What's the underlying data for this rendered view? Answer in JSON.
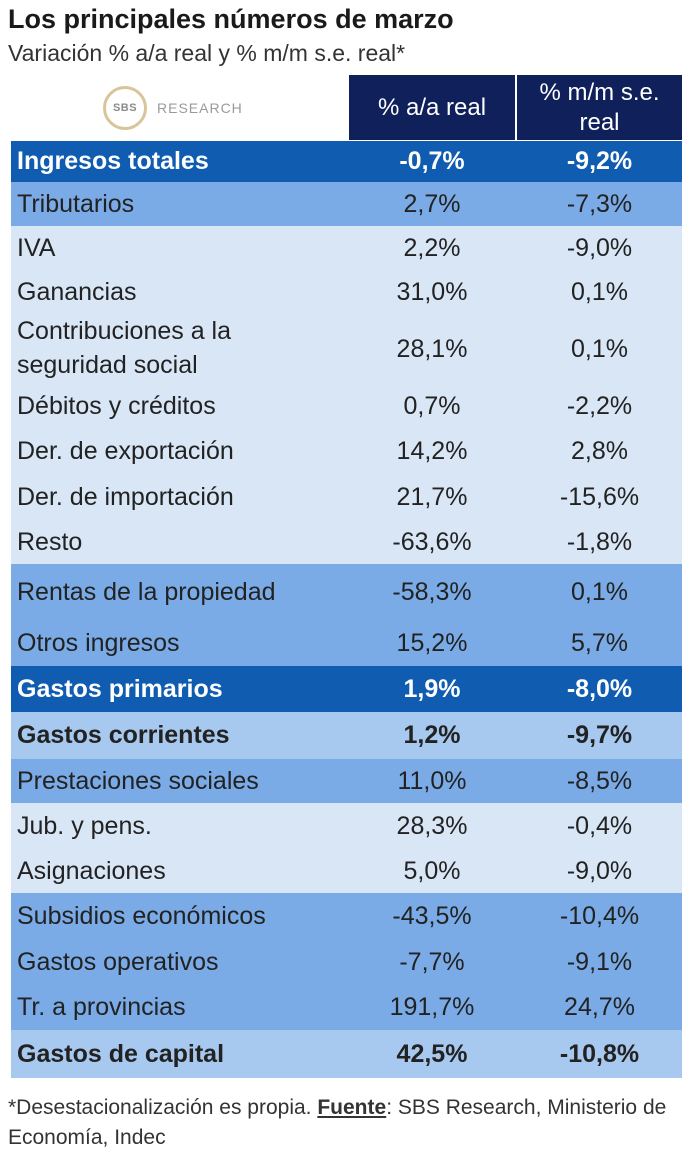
{
  "title": "Los principales números de marzo",
  "subtitle": "Variación % a/a real y % m/m s.e. real*",
  "logo": {
    "mark": "SBS",
    "text": "RESEARCH"
  },
  "colors": {
    "header": "#10205a",
    "total_row": "#0f5cb0",
    "medium_row": "#7aabe6",
    "light_row": "#d8e6f6",
    "bold_light_row": "#a7c9ef"
  },
  "chart_data": {
    "type": "table",
    "columns": [
      "% a/a real",
      "% m/m s.e. real"
    ],
    "rows": [
      {
        "label": "Ingresos totales",
        "aa": "-0,7%",
        "mm": "-9,2%",
        "style": "total"
      },
      {
        "label": "Tributarios",
        "aa": "2,7%",
        "mm": "-7,3%",
        "style": "medium"
      },
      {
        "label": "IVA",
        "aa": "2,2%",
        "mm": "-9,0%",
        "style": "light"
      },
      {
        "label": "Ganancias",
        "aa": "31,0%",
        "mm": "0,1%",
        "style": "light"
      },
      {
        "label": "Contribuciones a la seguridad social",
        "aa": "28,1%",
        "mm": "0,1%",
        "style": "light"
      },
      {
        "label": "Débitos y créditos",
        "aa": "0,7%",
        "mm": "-2,2%",
        "style": "light"
      },
      {
        "label": "Der. de exportación",
        "aa": "14,2%",
        "mm": "2,8%",
        "style": "light"
      },
      {
        "label": "Der. de importación",
        "aa": "21,7%",
        "mm": "-15,6%",
        "style": "light"
      },
      {
        "label": "Resto",
        "aa": "-63,6%",
        "mm": "-1,8%",
        "style": "light"
      },
      {
        "label": "Rentas de la propiedad",
        "aa": "-58,3%",
        "mm": "0,1%",
        "style": "medium"
      },
      {
        "label": "Otros ingresos",
        "aa": "15,2%",
        "mm": "5,7%",
        "style": "medium"
      },
      {
        "label": "Gastos primarios",
        "aa": "1,9%",
        "mm": "-8,0%",
        "style": "total"
      },
      {
        "label": "Gastos corrientes",
        "aa": "1,2%",
        "mm": "-9,7%",
        "style": "bold-light"
      },
      {
        "label": "Prestaciones sociales",
        "aa": "11,0%",
        "mm": "-8,5%",
        "style": "medium"
      },
      {
        "label": "Jub. y pens.",
        "aa": "28,3%",
        "mm": "-0,4%",
        "style": "light"
      },
      {
        "label": "Asignaciones",
        "aa": "5,0%",
        "mm": "-9,0%",
        "style": "light"
      },
      {
        "label": "Subsidios económicos",
        "aa": "-43,5%",
        "mm": "-10,4%",
        "style": "medium"
      },
      {
        "label": "Gastos operativos",
        "aa": "-7,7%",
        "mm": "-9,1%",
        "style": "medium"
      },
      {
        "label": "Tr. a provincias",
        "aa": "191,7%",
        "mm": "24,7%",
        "style": "medium"
      },
      {
        "label": "Gastos de capital",
        "aa": "42,5%",
        "mm": "-10,8%",
        "style": "bold-light"
      }
    ]
  },
  "footnote": {
    "prefix": "*Desestacionalización es propia. ",
    "source_label": "Fuente",
    "suffix": ": SBS Research, Ministerio de Economía, Indec"
  }
}
